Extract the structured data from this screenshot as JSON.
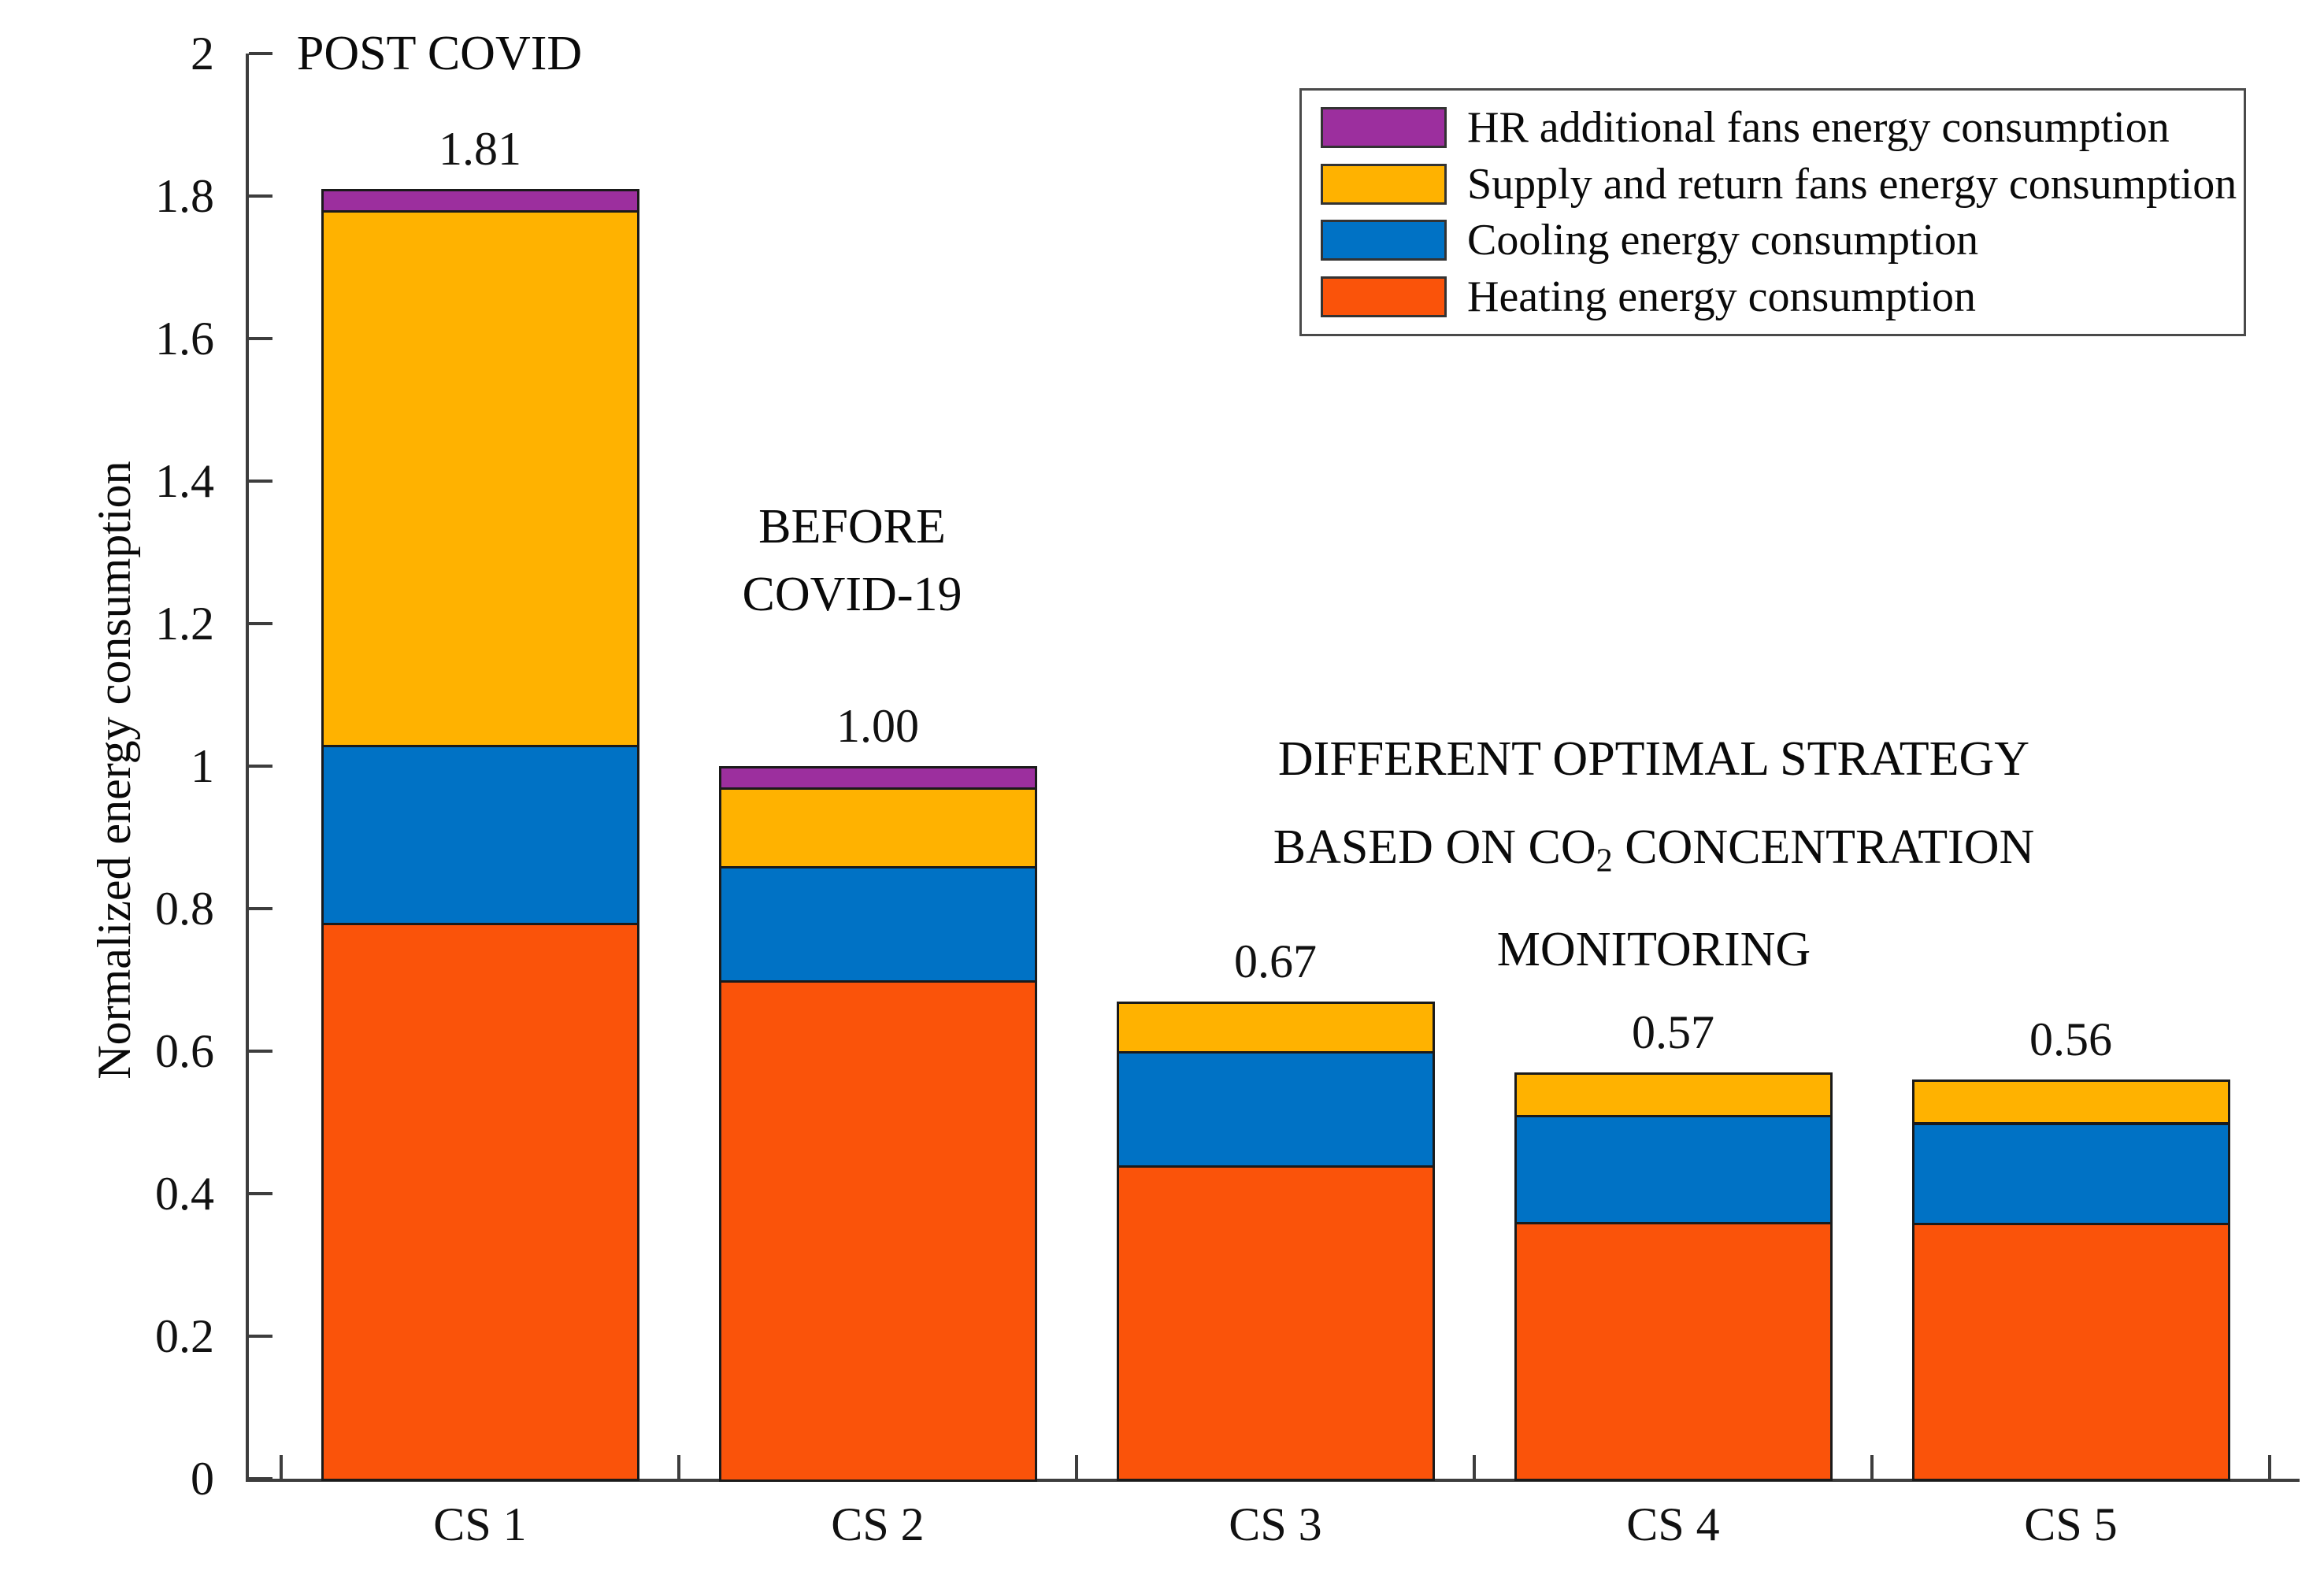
{
  "figure": {
    "background": "#ffffff",
    "axis_color": "#3d3d3d",
    "bar_border_color": "#1a1a1a"
  },
  "annotations": {
    "post_covid": "POST COVID",
    "before_covid_line1": "BEFORE",
    "before_covid_line2": "COVID-19",
    "strategy_line1": "DIFFERENT OPTIMAL STRATEGY",
    "strategy_line2_prefix": "BASED ON CO",
    "strategy_line2_sub": "2",
    "strategy_line2_suffix": " CONCENTRATION",
    "strategy_line3": "MONITORING"
  },
  "legend": {
    "items": [
      {
        "label": "HR additional fans energy consumption",
        "color": "#9c2f9e"
      },
      {
        "label": "Supply and return fans energy consumption",
        "color": "#ffb200"
      },
      {
        "label": "Cooling energy consumption",
        "color": "#0072c5"
      },
      {
        "label": "Heating energy consumption",
        "color": "#fa530a"
      }
    ]
  },
  "chart_data": {
    "type": "bar",
    "stacked": true,
    "title": "",
    "xlabel": "",
    "ylabel": "Normalized energy consumption",
    "ylim": [
      0,
      2
    ],
    "ytick_step": 0.2,
    "ytick_labels": [
      "0",
      "0.2",
      "0.4",
      "0.6",
      "0.8",
      "1",
      "1.2",
      "1.4",
      "1.6",
      "1.8",
      "2"
    ],
    "grid": false,
    "legend_position": "top-right",
    "categories": [
      "CS 1",
      "CS 2",
      "CS 3",
      "CS 4",
      "CS 5"
    ],
    "series": [
      {
        "name": "Heating energy consumption",
        "color": "#fa530a",
        "values": [
          0.78,
          0.7,
          0.44,
          0.36,
          0.36
        ]
      },
      {
        "name": "Cooling energy consumption",
        "color": "#0072c5",
        "values": [
          0.25,
          0.16,
          0.16,
          0.15,
          0.14
        ]
      },
      {
        "name": "Supply and return fans energy consumption",
        "color": "#ffb200",
        "values": [
          0.75,
          0.11,
          0.07,
          0.06,
          0.06
        ]
      },
      {
        "name": "HR additional fans energy consumption",
        "color": "#9c2f9e",
        "values": [
          0.03,
          0.03,
          0,
          0,
          0
        ]
      }
    ],
    "bar_totals": [
      1.81,
      1.0,
      0.67,
      0.57,
      0.56
    ],
    "bar_total_labels": [
      "1.81",
      "1.00",
      "0.67",
      "0.57",
      "0.56"
    ]
  }
}
